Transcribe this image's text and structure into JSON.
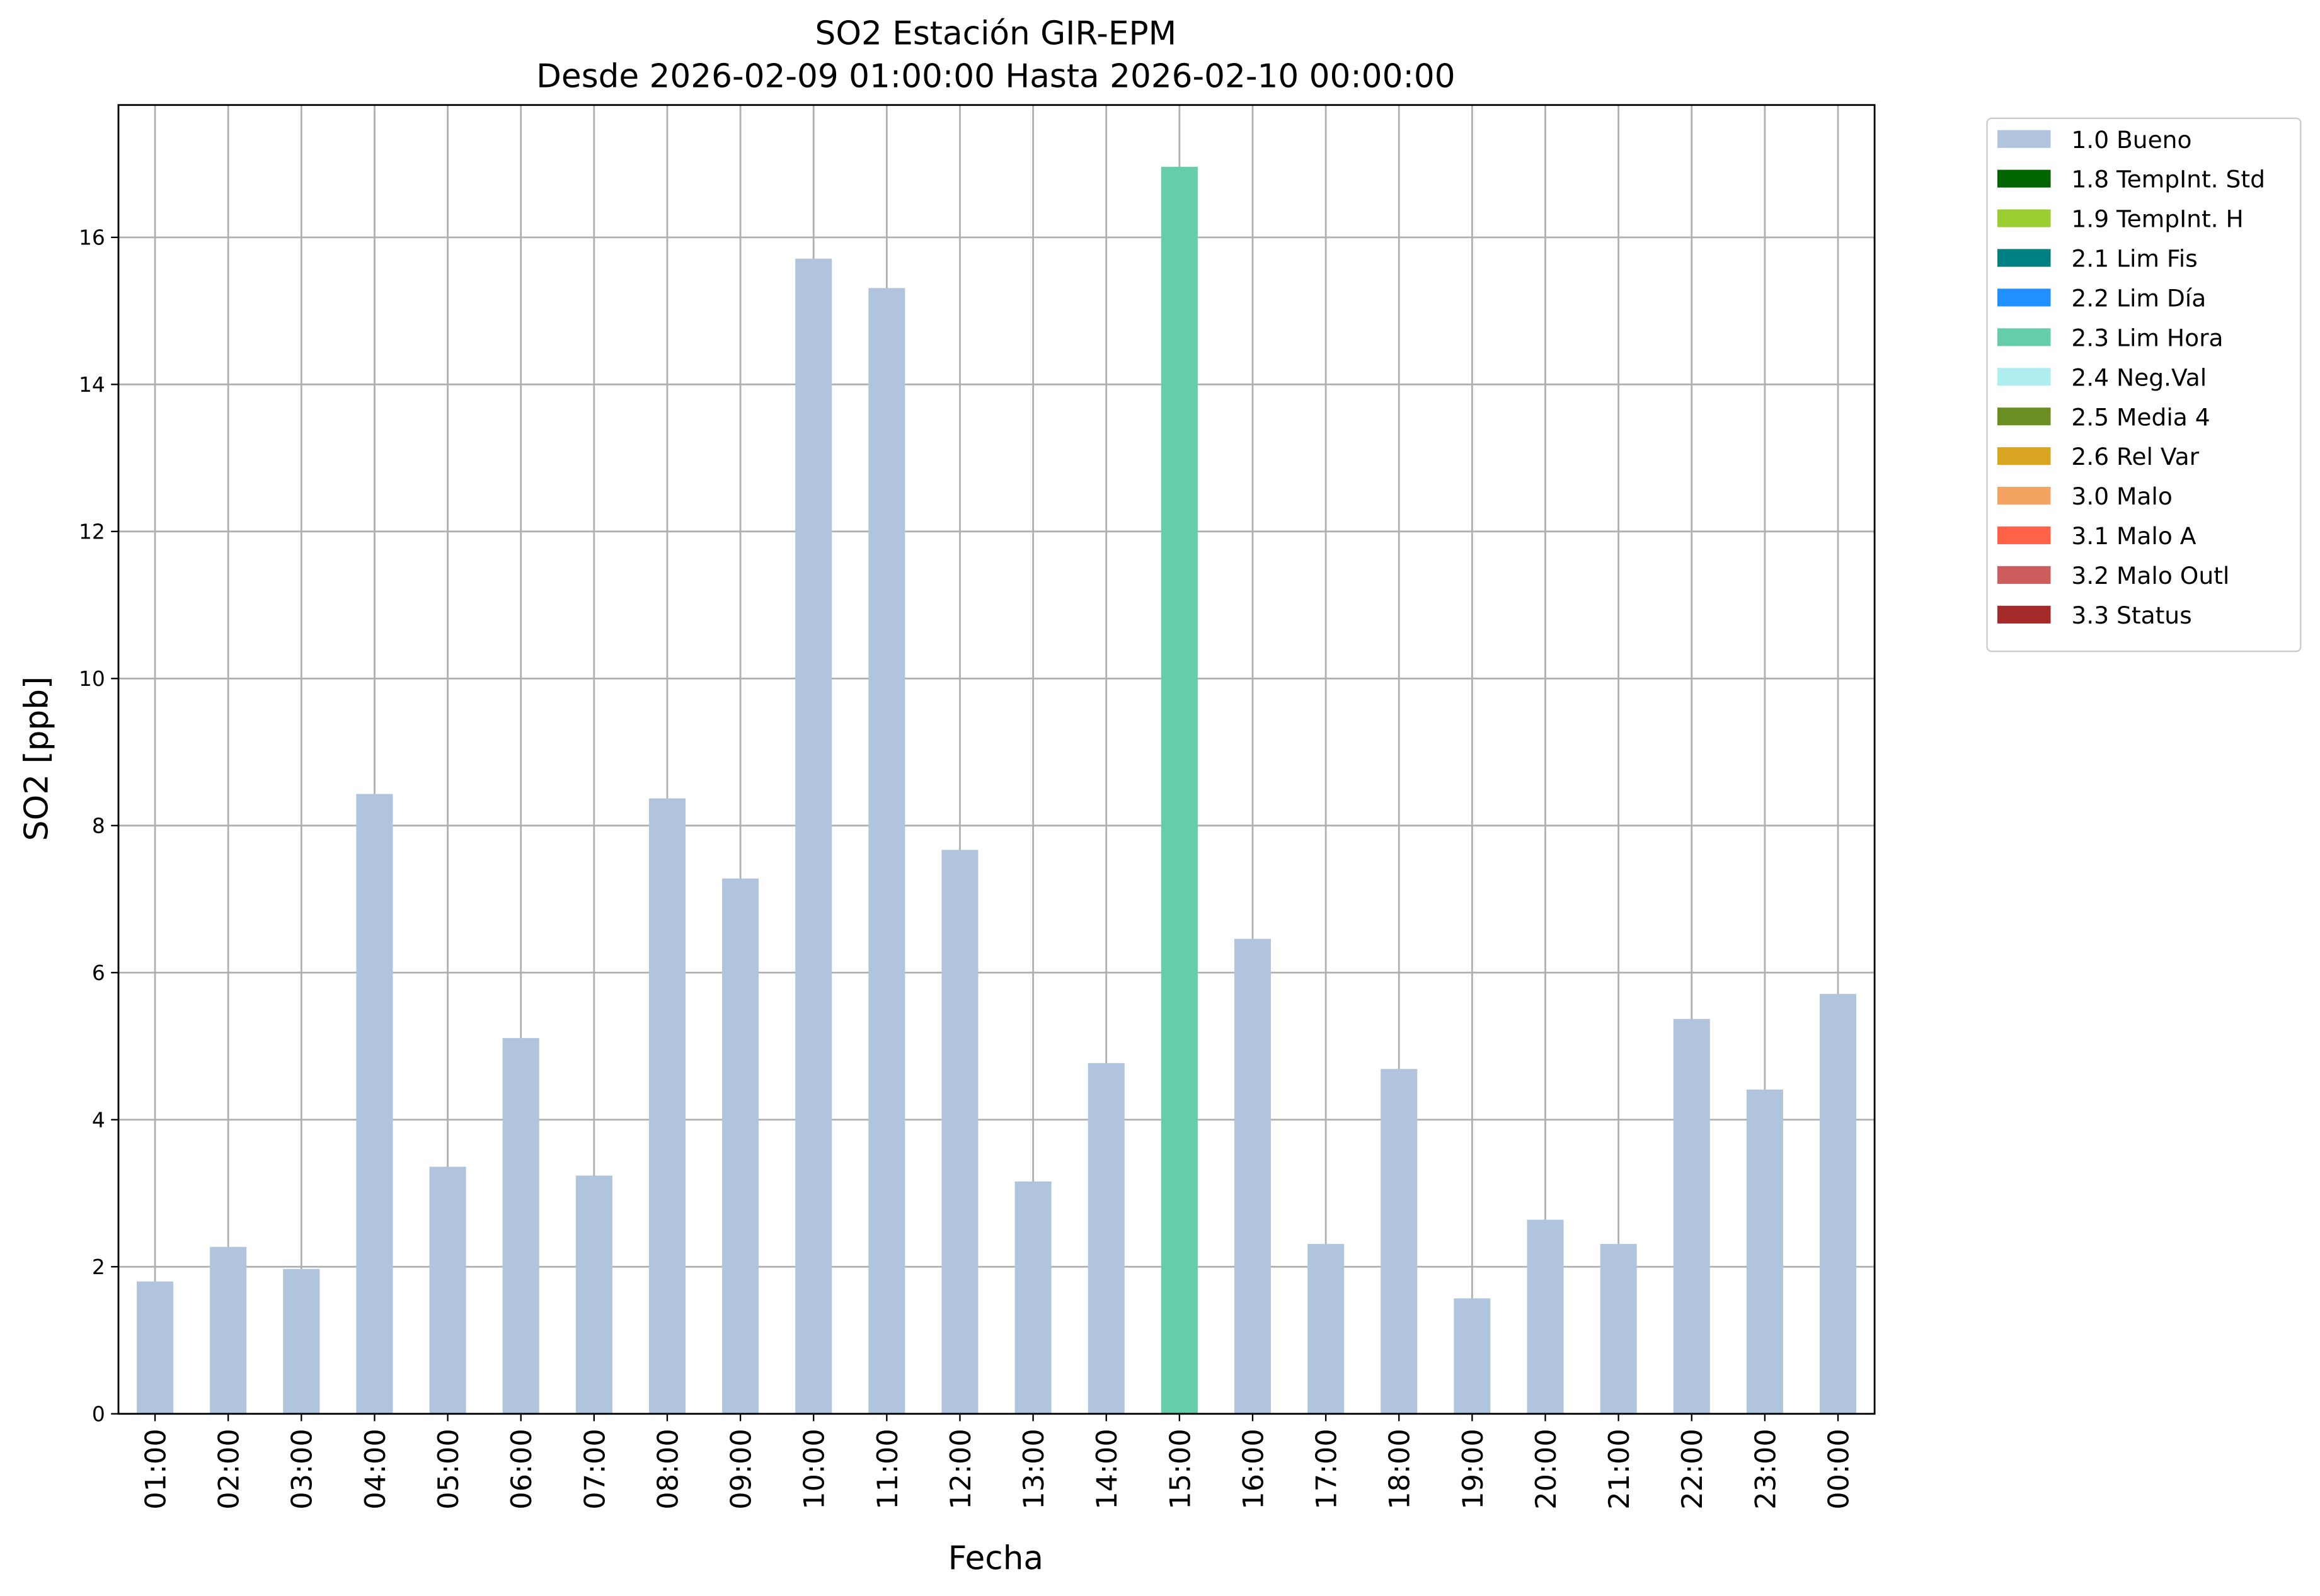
{
  "chart_data": {
    "type": "bar",
    "stacked": true,
    "title": "SO2 Estación GIR-EPM",
    "subtitle": "Desde 2026-02-09 01:00:00 Hasta 2026-02-10 00:00:00",
    "x_label": "Fecha",
    "y_label": "SO2 [ppb]",
    "categories": [
      "01:00",
      "02:00",
      "03:00",
      "04:00",
      "05:00",
      "06:00",
      "07:00",
      "08:00",
      "09:00",
      "10:00",
      "11:00",
      "12:00",
      "13:00",
      "14:00",
      "15:00",
      "16:00",
      "17:00",
      "18:00",
      "19:00",
      "20:00",
      "21:00",
      "22:00",
      "23:00",
      "00:00"
    ],
    "series": [
      {
        "name": "1.0 Bueno",
        "color": "#b0c4de",
        "values": [
          1.8,
          2.27,
          1.97,
          8.43,
          3.36,
          5.11,
          3.24,
          8.37,
          7.28,
          15.71,
          15.31,
          7.67,
          3.16,
          4.77,
          null,
          6.46,
          2.31,
          4.69,
          1.57,
          2.64,
          2.31,
          5.37,
          4.41,
          5.71
        ]
      },
      {
        "name": "1.8 TempInt. Std",
        "color": "#006400",
        "values": [
          null,
          null,
          null,
          null,
          null,
          null,
          null,
          null,
          null,
          null,
          null,
          null,
          null,
          null,
          null,
          null,
          null,
          null,
          null,
          null,
          null,
          null,
          null,
          null
        ]
      },
      {
        "name": "1.9 TempInt. H",
        "color": "#9acd32",
        "values": [
          null,
          null,
          null,
          null,
          null,
          null,
          null,
          null,
          null,
          null,
          null,
          null,
          null,
          null,
          null,
          null,
          null,
          null,
          null,
          null,
          null,
          null,
          null,
          null
        ]
      },
      {
        "name": "2.1 Lim Fis",
        "color": "#008080",
        "values": [
          null,
          null,
          null,
          null,
          null,
          null,
          null,
          null,
          null,
          null,
          null,
          null,
          null,
          null,
          null,
          null,
          null,
          null,
          null,
          null,
          null,
          null,
          null,
          null
        ]
      },
      {
        "name": "2.2 Lim Día",
        "color": "#1e90ff",
        "values": [
          null,
          null,
          null,
          null,
          null,
          null,
          null,
          null,
          null,
          null,
          null,
          null,
          null,
          null,
          null,
          null,
          null,
          null,
          null,
          null,
          null,
          null,
          null,
          null
        ]
      },
      {
        "name": "2.3 Lim Hora",
        "color": "#66cdaa",
        "values": [
          null,
          null,
          null,
          null,
          null,
          null,
          null,
          null,
          null,
          null,
          null,
          null,
          null,
          null,
          16.96,
          null,
          null,
          null,
          null,
          null,
          null,
          null,
          null,
          null
        ]
      },
      {
        "name": "2.4 Neg.Val",
        "color": "#afeeee",
        "values": [
          null,
          null,
          null,
          null,
          null,
          null,
          null,
          null,
          null,
          null,
          null,
          null,
          null,
          null,
          null,
          null,
          null,
          null,
          null,
          null,
          null,
          null,
          null,
          null
        ]
      },
      {
        "name": "2.5 Media 4",
        "color": "#6b8e23",
        "values": [
          null,
          null,
          null,
          null,
          null,
          null,
          null,
          null,
          null,
          null,
          null,
          null,
          null,
          null,
          null,
          null,
          null,
          null,
          null,
          null,
          null,
          null,
          null,
          null
        ]
      },
      {
        "name": "2.6 Rel Var",
        "color": "#daa520",
        "values": [
          null,
          null,
          null,
          null,
          null,
          null,
          null,
          null,
          null,
          null,
          null,
          null,
          null,
          null,
          null,
          null,
          null,
          null,
          null,
          null,
          null,
          null,
          null,
          null
        ]
      },
      {
        "name": "3.0 Malo",
        "color": "#f4a460",
        "values": [
          null,
          null,
          null,
          null,
          null,
          null,
          null,
          null,
          null,
          null,
          null,
          null,
          null,
          null,
          null,
          null,
          null,
          null,
          null,
          null,
          null,
          null,
          null,
          null
        ]
      },
      {
        "name": "3.1 Malo A",
        "color": "#ff6347",
        "values": [
          null,
          null,
          null,
          null,
          null,
          null,
          null,
          null,
          null,
          null,
          null,
          null,
          null,
          null,
          null,
          null,
          null,
          null,
          null,
          null,
          null,
          null,
          null,
          null
        ]
      },
      {
        "name": "3.2 Malo Outl",
        "color": "#cd5c5c",
        "values": [
          null,
          null,
          null,
          null,
          null,
          null,
          null,
          null,
          null,
          null,
          null,
          null,
          null,
          null,
          null,
          null,
          null,
          null,
          null,
          null,
          null,
          null,
          null,
          null
        ]
      },
      {
        "name": "3.3 Status",
        "color": "#a52a2a",
        "values": [
          null,
          null,
          null,
          null,
          null,
          null,
          null,
          null,
          null,
          null,
          null,
          null,
          null,
          null,
          null,
          null,
          null,
          null,
          null,
          null,
          null,
          null,
          null,
          null
        ]
      }
    ],
    "ylim": [
      0,
      17.8
    ],
    "yticks": [
      0,
      2,
      4,
      6,
      8,
      10,
      12,
      14,
      16
    ],
    "grid": true,
    "legend": "outside-right"
  }
}
